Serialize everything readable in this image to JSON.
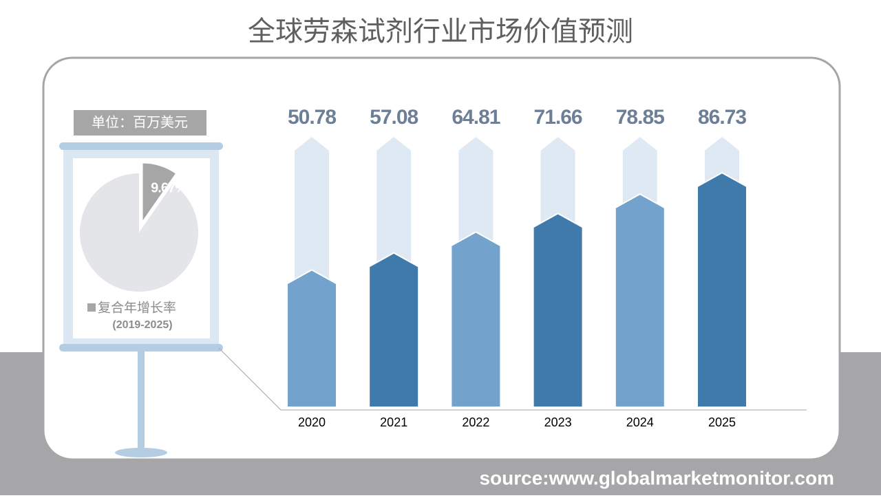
{
  "title": "全球劳森试剂行业市场价值预测",
  "source": "source:www.globalmarketmonitor.com",
  "chart_data": [
    {
      "type": "bar",
      "y_label": "单位：百万美元",
      "categories": [
        "2020",
        "2021",
        "2022",
        "2023",
        "2024",
        "2025"
      ],
      "values": [
        50.78,
        57.08,
        64.81,
        71.66,
        78.85,
        86.73
      ],
      "colors": [
        "#73a3cc",
        "#3f7aab",
        "#73a3cc",
        "#3f7aab",
        "#73a3cc",
        "#3f7aab"
      ],
      "track_color": "#dfe9f3",
      "ylim": [
        0,
        100
      ]
    },
    {
      "type": "pie",
      "legend": "复合年增长率",
      "subtitle": "(2019-2025)",
      "values": [
        9.67
      ],
      "value_labels": [
        "9.67%"
      ],
      "color": "#a6a6a6",
      "rest_color": "#e4e5e9"
    }
  ]
}
